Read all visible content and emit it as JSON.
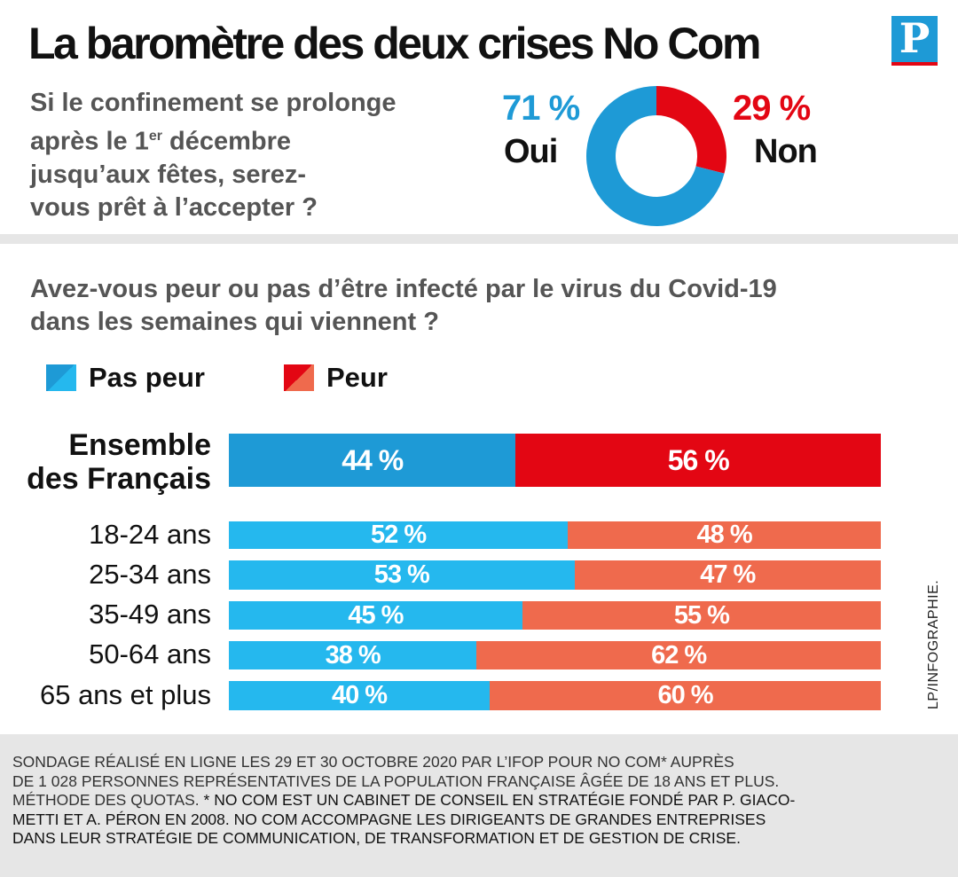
{
  "header": {
    "title": "La baromètre des deux crises No Com",
    "logo_letter": "P"
  },
  "question1": {
    "line1": "Si le confinement se prolonge",
    "line2_pre": "après le 1",
    "line2_sup": "er",
    "line2_post": " décembre",
    "line3": "jusqu’aux fêtes, serez-",
    "line4": "vous prêt à l’accepter ?"
  },
  "donut": {
    "oui_pct": "71 %",
    "oui_label": "Oui",
    "non_pct": "29 %",
    "non_label": "Non",
    "colors": {
      "oui": "#1e9ad6",
      "non": "#e30613"
    }
  },
  "question2": {
    "line1": "Avez-vous peur ou pas d’être infecté par le virus du Covid-19",
    "line2": "dans les semaines qui viennent ?"
  },
  "legend": {
    "pas_peur": "Pas peur",
    "peur": "Peur"
  },
  "chart_data": [
    {
      "type": "pie",
      "subtype": "donut",
      "title": "Si le confinement se prolonge après le 1er décembre jusqu’aux fêtes, serez-vous prêt à l’accepter ?",
      "categories": [
        "Oui",
        "Non"
      ],
      "values": [
        71,
        29
      ],
      "value_labels": [
        "71 %",
        "29 %"
      ],
      "colors": [
        "#1e9ad6",
        "#e30613"
      ]
    },
    {
      "type": "bar",
      "orientation": "horizontal",
      "stacked": true,
      "normalized": true,
      "title": "Avez-vous peur ou pas d’être infecté par le virus du Covid-19 dans les semaines qui viennent ?",
      "groups": [
        {
          "label_lines": [
            "Ensemble",
            "des Français"
          ],
          "highlight": true
        },
        {
          "label_lines": [
            "18-24 ans"
          ]
        },
        {
          "label_lines": [
            "25-34 ans"
          ]
        },
        {
          "label_lines": [
            "35-49 ans"
          ]
        },
        {
          "label_lines": [
            "50-64 ans"
          ]
        },
        {
          "label_lines": [
            "65 ans et plus"
          ]
        }
      ],
      "series": [
        {
          "name": "Pas peur",
          "values": [
            44,
            52,
            53,
            45,
            38,
            40
          ],
          "labels": [
            "44 %",
            "52 %",
            "53 %",
            "45 %",
            "38 %",
            "40 %"
          ],
          "color": "#25b8ee",
          "highlight_color": "#1e9ad6"
        },
        {
          "name": "Peur",
          "values": [
            56,
            48,
            47,
            55,
            62,
            60
          ],
          "labels": [
            "56 %",
            "48 %",
            "47 %",
            "55 %",
            "62 %",
            "60 %"
          ],
          "color": "#ef6a4d",
          "highlight_color": "#e30613"
        }
      ],
      "legend": "top-left",
      "xlim": [
        0,
        100
      ]
    }
  ],
  "credit": "LP/INFOGRAPHIE.",
  "footer": {
    "line1": "Sondage réalisé en ligne les 29 et 30 octobre 2020 par l’Ifop pour No Com* auprès",
    "line2": "de 1 028 personnes représentatives de la population française âgée de 18 ans et plus.",
    "line3_a": "Méthode des quotas. ",
    "line3_b": "* No Com est un cabinet de conseil en stratégie fondé par P. Giaco-",
    "line4": "metti et A. Péron en 2008. No Com accompagne les dirigeants de grandes entreprises",
    "line5": "dans leur stratégie de communication, de transformation et de gestion de crise."
  }
}
